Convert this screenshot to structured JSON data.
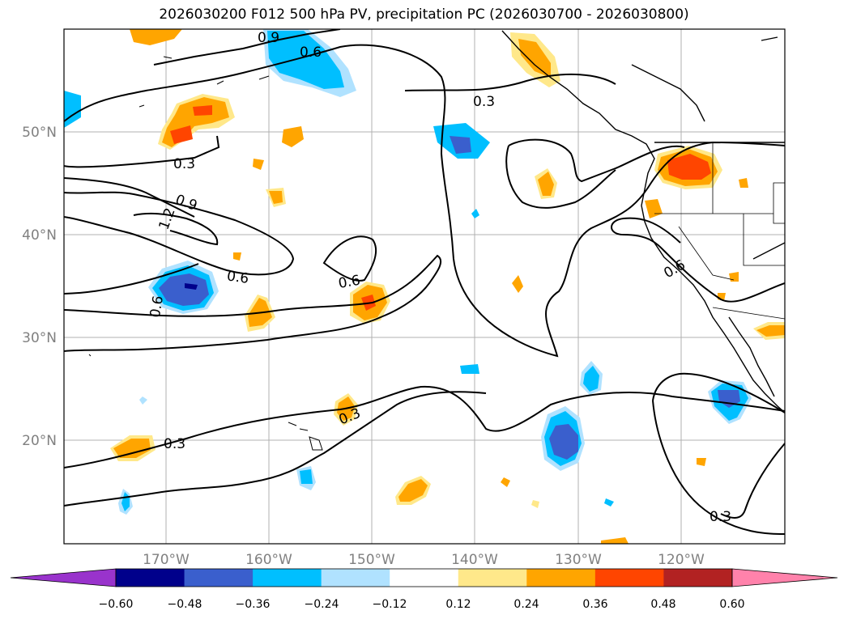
{
  "title": "2026030200 F012 500 hPa PV, precipitation PC (2026030700 - 2026030800)",
  "map": {
    "lon_ticks": [
      "170°W",
      "160°W",
      "150°W",
      "140°W",
      "130°W",
      "120°W"
    ],
    "lat_ticks": [
      "50°N",
      "40°N",
      "30°N",
      "20°N"
    ],
    "contour_labels": [
      "0.9",
      "0.6",
      "0.3",
      "0.3",
      "0.9",
      "1.2",
      "0.6",
      "0.6",
      "0.6",
      "0.6",
      "0.3",
      "0.3",
      "0.3"
    ]
  },
  "colorbar": {
    "ticks": [
      "−0.60",
      "−0.48",
      "−0.36",
      "−0.24",
      "−0.12",
      "0.12",
      "0.24",
      "0.36",
      "0.48",
      "0.60"
    ],
    "colors": [
      "#9933cc",
      "#00008b",
      "#3a5fcd",
      "#00bfff",
      "#b0e2ff",
      "#ffffff",
      "#ffe88a",
      "#ffa500",
      "#ff4500",
      "#b22222",
      "#ff82ab"
    ]
  }
}
